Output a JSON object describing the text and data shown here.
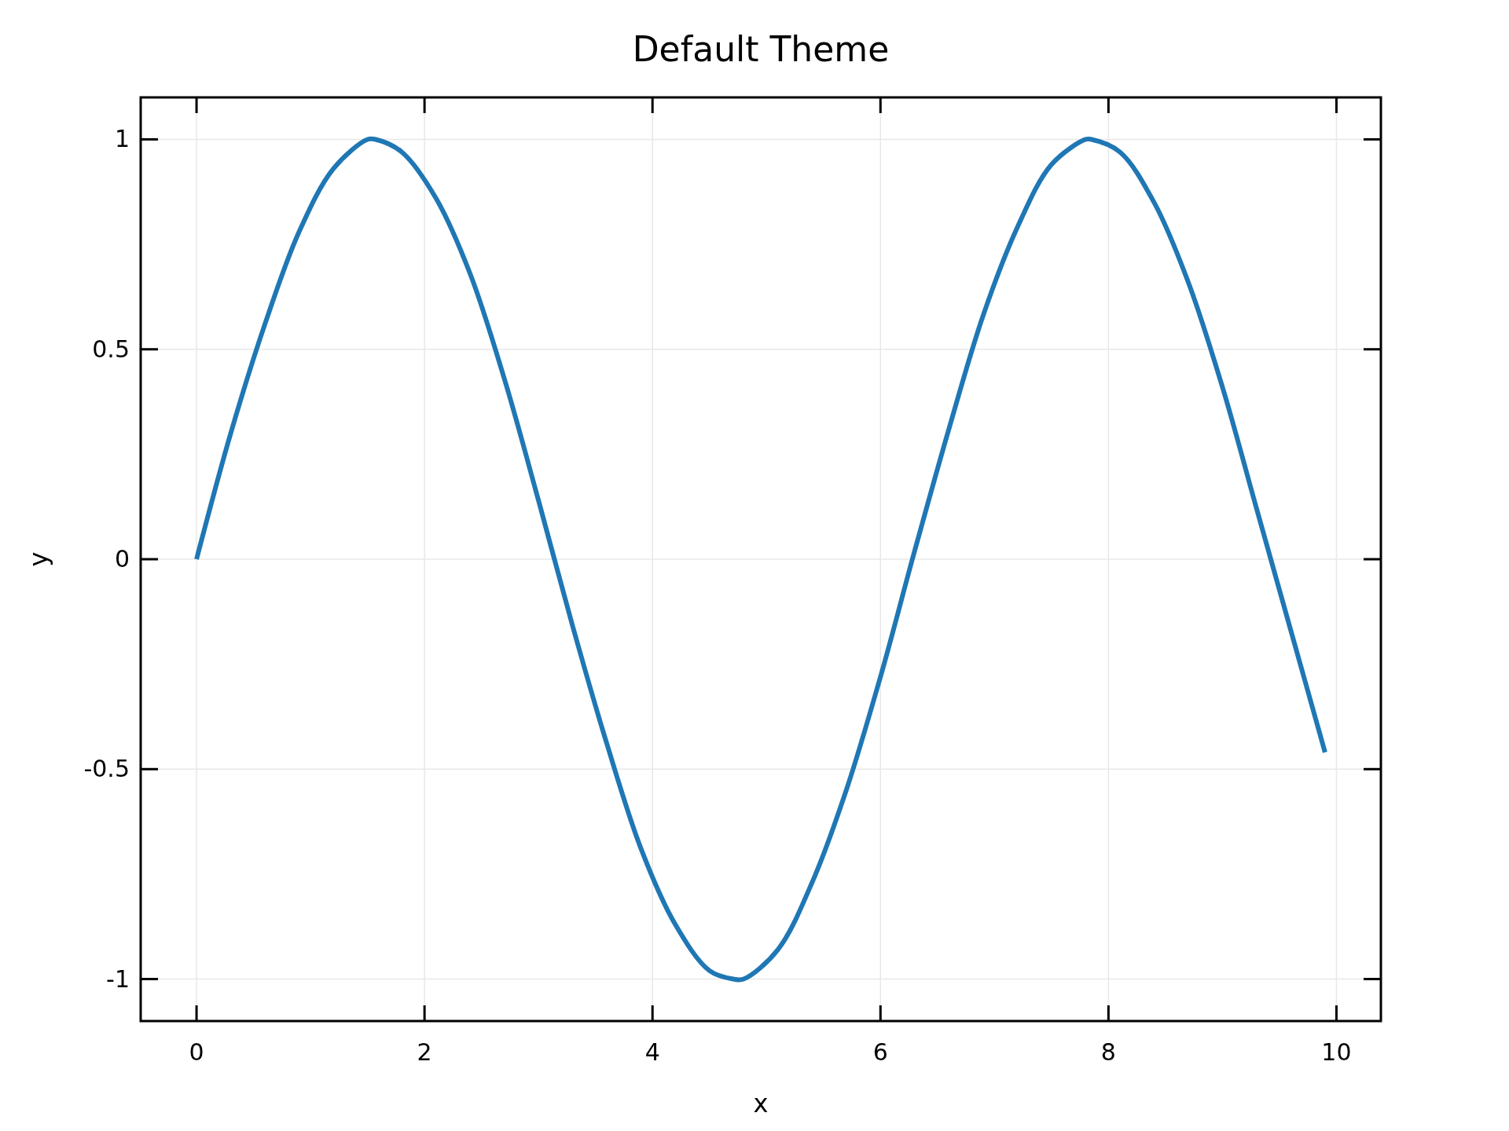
{
  "chart_data": {
    "type": "line",
    "title": "Default Theme",
    "xlabel": "x",
    "ylabel": "y",
    "x": [
      0,
      0.3,
      0.6,
      0.9,
      1.2,
      1.5,
      1.57,
      1.8,
      2.1,
      2.4,
      2.7,
      3.0,
      3.3,
      3.6,
      3.9,
      4.2,
      4.5,
      4.71,
      4.8,
      5.1,
      5.4,
      5.7,
      6.0,
      6.3,
      6.6,
      6.9,
      7.2,
      7.5,
      7.8,
      7.85,
      8.1,
      8.4,
      8.7,
      9.0,
      9.3,
      9.6,
      9.9
    ],
    "series": [
      {
        "color": "#1f77b4",
        "values": [
          0,
          0.3,
          0.56,
          0.78,
          0.93,
          1.0,
          1.0,
          0.97,
          0.86,
          0.68,
          0.43,
          0.14,
          -0.16,
          -0.44,
          -0.69,
          -0.87,
          -0.98,
          -1.0,
          -1.0,
          -0.93,
          -0.77,
          -0.55,
          -0.28,
          0.02,
          0.31,
          0.58,
          0.79,
          0.94,
          1.0,
          1.0,
          0.97,
          0.85,
          0.66,
          0.41,
          0.12,
          -0.17,
          -0.46
        ]
      }
    ],
    "xlim": [
      -0.49,
      10.39
    ],
    "ylim": [
      -1.1,
      1.1
    ],
    "xticks": [
      0,
      2,
      4,
      6,
      8,
      10
    ],
    "yticks": [
      -1,
      -0.5,
      0,
      0.5,
      1
    ],
    "grid": true,
    "marker": "none",
    "line_style": "solid"
  }
}
